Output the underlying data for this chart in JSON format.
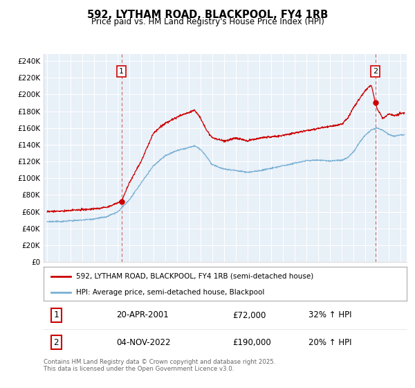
{
  "title": "592, LYTHAM ROAD, BLACKPOOL, FY4 1RB",
  "subtitle": "Price paid vs. HM Land Registry's House Price Index (HPI)",
  "ylabel_ticks": [
    "£0",
    "£20K",
    "£40K",
    "£60K",
    "£80K",
    "£100K",
    "£120K",
    "£140K",
    "£160K",
    "£180K",
    "£200K",
    "£220K",
    "£240K"
  ],
  "ytick_values": [
    0,
    20000,
    40000,
    60000,
    80000,
    100000,
    120000,
    140000,
    160000,
    180000,
    200000,
    220000,
    240000
  ],
  "ylim": [
    0,
    248000
  ],
  "xlim_start": 1994.7,
  "xlim_end": 2025.5,
  "background_color": "#e8f0f8",
  "plot_bg_color": "#e8f0f8",
  "grid_color": "#ffffff",
  "red_line_color": "#cc0000",
  "blue_line_color": "#7ab0d4",
  "vline_color": "#cc6666",
  "marker1_x": 2001.31,
  "marker1_y": 72000,
  "marker2_x": 2022.84,
  "marker2_y": 190000,
  "annotation1": {
    "label": "1",
    "date": "20-APR-2001",
    "price": "£72,000",
    "hpi": "32% ↑ HPI"
  },
  "annotation2": {
    "label": "2",
    "date": "04-NOV-2022",
    "price": "£190,000",
    "hpi": "20% ↑ HPI"
  },
  "legend1": "592, LYTHAM ROAD, BLACKPOOL, FY4 1RB (semi-detached house)",
  "legend2": "HPI: Average price, semi-detached house, Blackpool",
  "footer": "Contains HM Land Registry data © Crown copyright and database right 2025.\nThis data is licensed under the Open Government Licence v3.0.",
  "hpi_anchors_x": [
    1995,
    1996,
    1997,
    1998,
    1999,
    2000,
    2001,
    2002,
    2003,
    2004,
    2005,
    2006,
    2007,
    2007.5,
    2008,
    2008.5,
    2009,
    2010,
    2011,
    2012,
    2013,
    2014,
    2015,
    2016,
    2017,
    2018,
    2019,
    2020,
    2020.5,
    2021,
    2021.5,
    2022,
    2022.5,
    2023,
    2023.5,
    2024,
    2024.5,
    2025
  ],
  "hpi_anchors_y": [
    48000,
    48500,
    49500,
    50500,
    52000,
    54000,
    60000,
    75000,
    95000,
    115000,
    127000,
    133000,
    137000,
    139000,
    135000,
    127000,
    117000,
    112000,
    110000,
    108000,
    110000,
    113000,
    116000,
    119000,
    122000,
    122000,
    121000,
    122000,
    125000,
    132000,
    143000,
    152000,
    158000,
    160000,
    157000,
    152000,
    150000,
    152000
  ],
  "red_anchors_x": [
    1995,
    1996,
    1997,
    1998,
    1999,
    2000,
    2001,
    2001.31,
    2002,
    2003,
    2004,
    2005,
    2006,
    2007,
    2007.5,
    2008,
    2008.5,
    2009,
    2010,
    2011,
    2012,
    2013,
    2014,
    2015,
    2016,
    2017,
    2018,
    2019,
    2020,
    2020.5,
    2021,
    2021.5,
    2022,
    2022.5,
    2022.84,
    2023.0,
    2023.2,
    2023.5,
    2024,
    2024.5,
    2025
  ],
  "red_anchors_y": [
    60000,
    60500,
    61000,
    62000,
    63000,
    65000,
    70000,
    72000,
    95000,
    120000,
    152000,
    165000,
    172000,
    178000,
    181000,
    172000,
    157000,
    148000,
    144000,
    148000,
    145000,
    148000,
    150000,
    152000,
    155000,
    157000,
    160000,
    162000,
    165000,
    172000,
    185000,
    195000,
    205000,
    212000,
    190000,
    183000,
    178000,
    172000,
    177000,
    175000,
    178000
  ]
}
